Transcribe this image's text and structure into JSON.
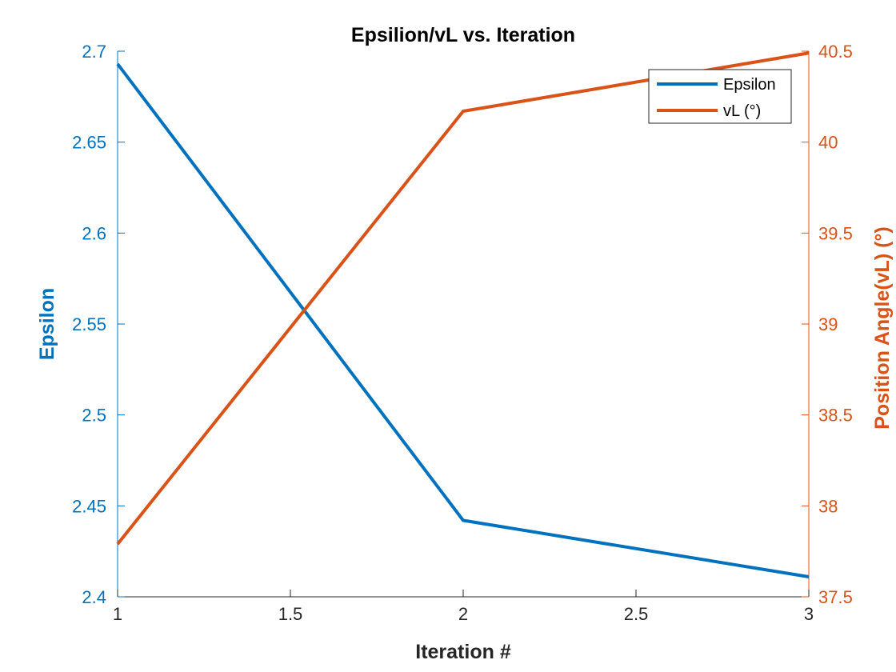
{
  "chart_data": {
    "type": "line",
    "title": "Epsilion/vL vs. Iteration",
    "xlabel": "Iteration #",
    "ylabel_left": "Epsilon",
    "ylabel_right": "Position Angle(vL) (°)",
    "x": [
      1,
      2,
      3
    ],
    "xlim": [
      1,
      3
    ],
    "xticks": [
      "1",
      "1.5",
      "2",
      "2.5",
      "3"
    ],
    "ylim_left": [
      2.4,
      2.7
    ],
    "yticks_left": [
      "2.4",
      "2.45",
      "2.5",
      "2.55",
      "2.6",
      "2.65",
      "2.7"
    ],
    "ylim_right": [
      37.5,
      40.5
    ],
    "yticks_right": [
      "37.5",
      "38",
      "38.5",
      "39",
      "39.5",
      "40",
      "40.5"
    ],
    "grid": false,
    "legend_position": "top-right",
    "series": [
      {
        "name": "Epsilon",
        "axis": "left",
        "color": "#0072BD",
        "values": [
          2.693,
          2.442,
          2.411
        ]
      },
      {
        "name": "vL (°)",
        "axis": "right",
        "color": "#D95319",
        "values": [
          37.79,
          40.17,
          40.49
        ]
      }
    ]
  }
}
